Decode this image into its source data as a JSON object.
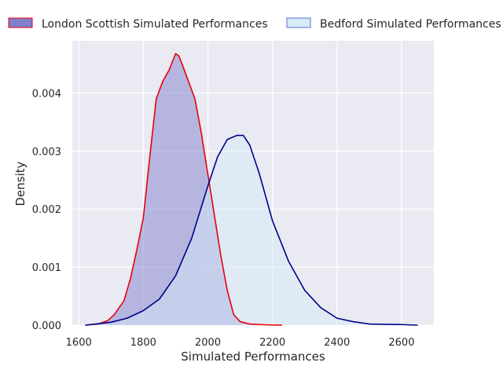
{
  "chart_data": {
    "type": "area",
    "title": "",
    "xlabel": "Simulated Performances",
    "ylabel": "Density",
    "xlim": [
      1580,
      2700
    ],
    "ylim": [
      0,
      0.0049
    ],
    "xticks": [
      1600,
      1800,
      2000,
      2200,
      2400,
      2600
    ],
    "yticks": [
      0.0,
      0.001,
      0.002,
      0.003,
      0.004
    ],
    "ytick_labels": [
      "0.000",
      "0.001",
      "0.002",
      "0.003",
      "0.004"
    ],
    "grid": true,
    "legend": {
      "placement": "top",
      "columns": 2
    },
    "series": [
      {
        "name": "London Scottish Simulated Performances",
        "line_color": "#e8000b",
        "fill_color": "#7f7fcc",
        "points": [
          [
            1620,
            0.0
          ],
          [
            1660,
            2e-05
          ],
          [
            1690,
            8e-05
          ],
          [
            1710,
            0.00018
          ],
          [
            1740,
            0.00042
          ],
          [
            1760,
            0.0008
          ],
          [
            1780,
            0.0013
          ],
          [
            1800,
            0.00185
          ],
          [
            1820,
            0.0029
          ],
          [
            1840,
            0.0039
          ],
          [
            1860,
            0.0042
          ],
          [
            1880,
            0.0044
          ],
          [
            1900,
            0.00468
          ],
          [
            1910,
            0.00464
          ],
          [
            1920,
            0.0045
          ],
          [
            1940,
            0.0042
          ],
          [
            1960,
            0.0039
          ],
          [
            1980,
            0.0033
          ],
          [
            2000,
            0.0026
          ],
          [
            2020,
            0.0019
          ],
          [
            2040,
            0.0012
          ],
          [
            2060,
            0.0006
          ],
          [
            2080,
            0.00018
          ],
          [
            2100,
            6e-05
          ],
          [
            2130,
            2e-05
          ],
          [
            2180,
            5e-06
          ],
          [
            2230,
            0.0
          ]
        ]
      },
      {
        "name": "Bedford Simulated Performances",
        "line_color": "#00008b",
        "fill_color": "#d6eaf8",
        "points": [
          [
            1620,
            0.0
          ],
          [
            1700,
            5e-05
          ],
          [
            1750,
            0.00012
          ],
          [
            1800,
            0.00025
          ],
          [
            1850,
            0.00045
          ],
          [
            1900,
            0.00085
          ],
          [
            1950,
            0.0015
          ],
          [
            2000,
            0.0024
          ],
          [
            2030,
            0.0029
          ],
          [
            2060,
            0.0032
          ],
          [
            2090,
            0.00327
          ],
          [
            2110,
            0.00327
          ],
          [
            2130,
            0.0031
          ],
          [
            2160,
            0.0026
          ],
          [
            2200,
            0.0018
          ],
          [
            2250,
            0.0011
          ],
          [
            2300,
            0.0006
          ],
          [
            2350,
            0.0003
          ],
          [
            2400,
            0.00012
          ],
          [
            2450,
            6e-05
          ],
          [
            2500,
            2e-05
          ],
          [
            2550,
            1.5e-05
          ],
          [
            2600,
            1e-05
          ],
          [
            2650,
            0.0
          ]
        ]
      }
    ]
  }
}
